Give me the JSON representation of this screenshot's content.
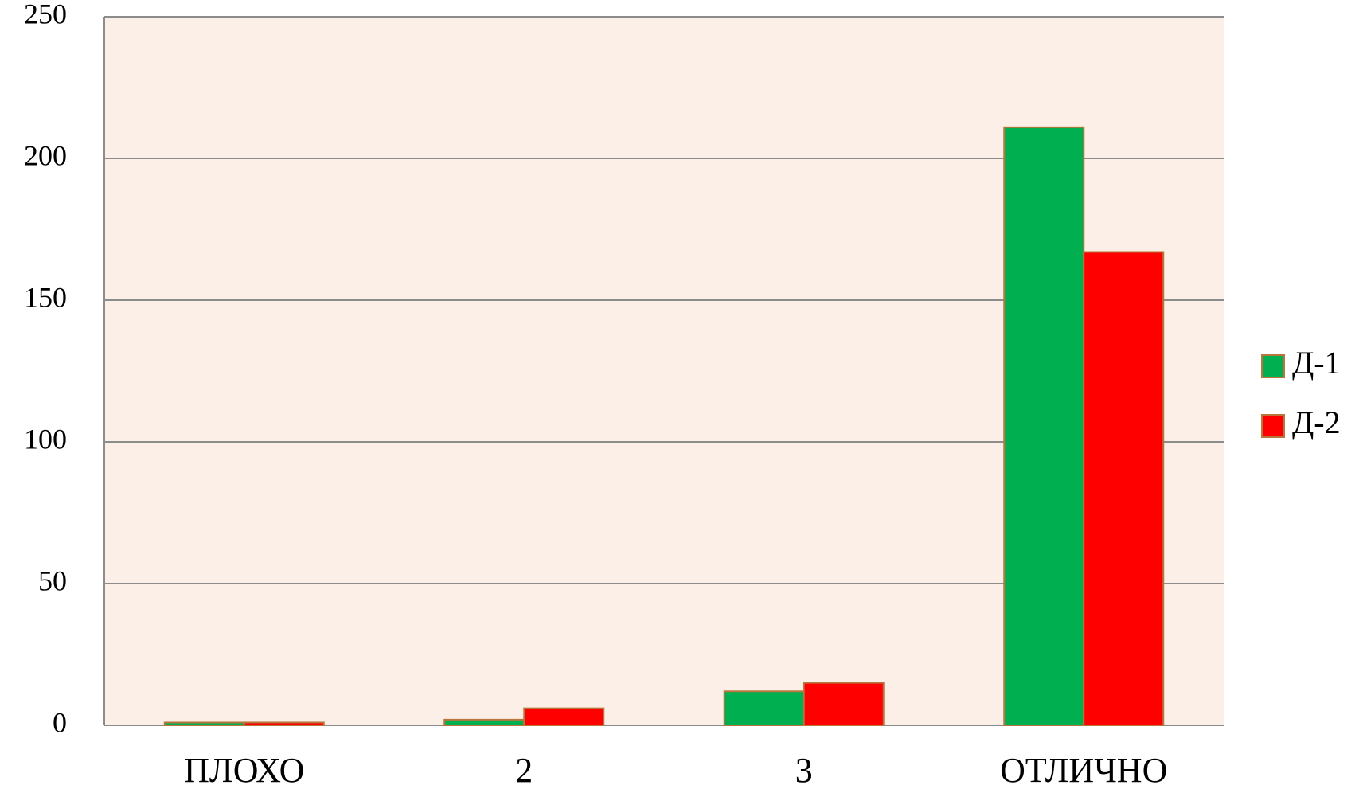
{
  "chart_data": {
    "type": "bar",
    "categories": [
      "ПЛОХО",
      "2",
      "3",
      "ОТЛИЧНО"
    ],
    "series": [
      {
        "name": "Д-1",
        "color": "#00b050",
        "values": [
          1,
          2,
          12,
          211
        ]
      },
      {
        "name": "Д-2",
        "color": "#ff0000",
        "values": [
          1,
          6,
          15,
          167
        ]
      }
    ],
    "ylim": [
      0,
      250
    ],
    "yticks": [
      0,
      50,
      100,
      150,
      200,
      250
    ],
    "grid": true,
    "legend": "right"
  }
}
